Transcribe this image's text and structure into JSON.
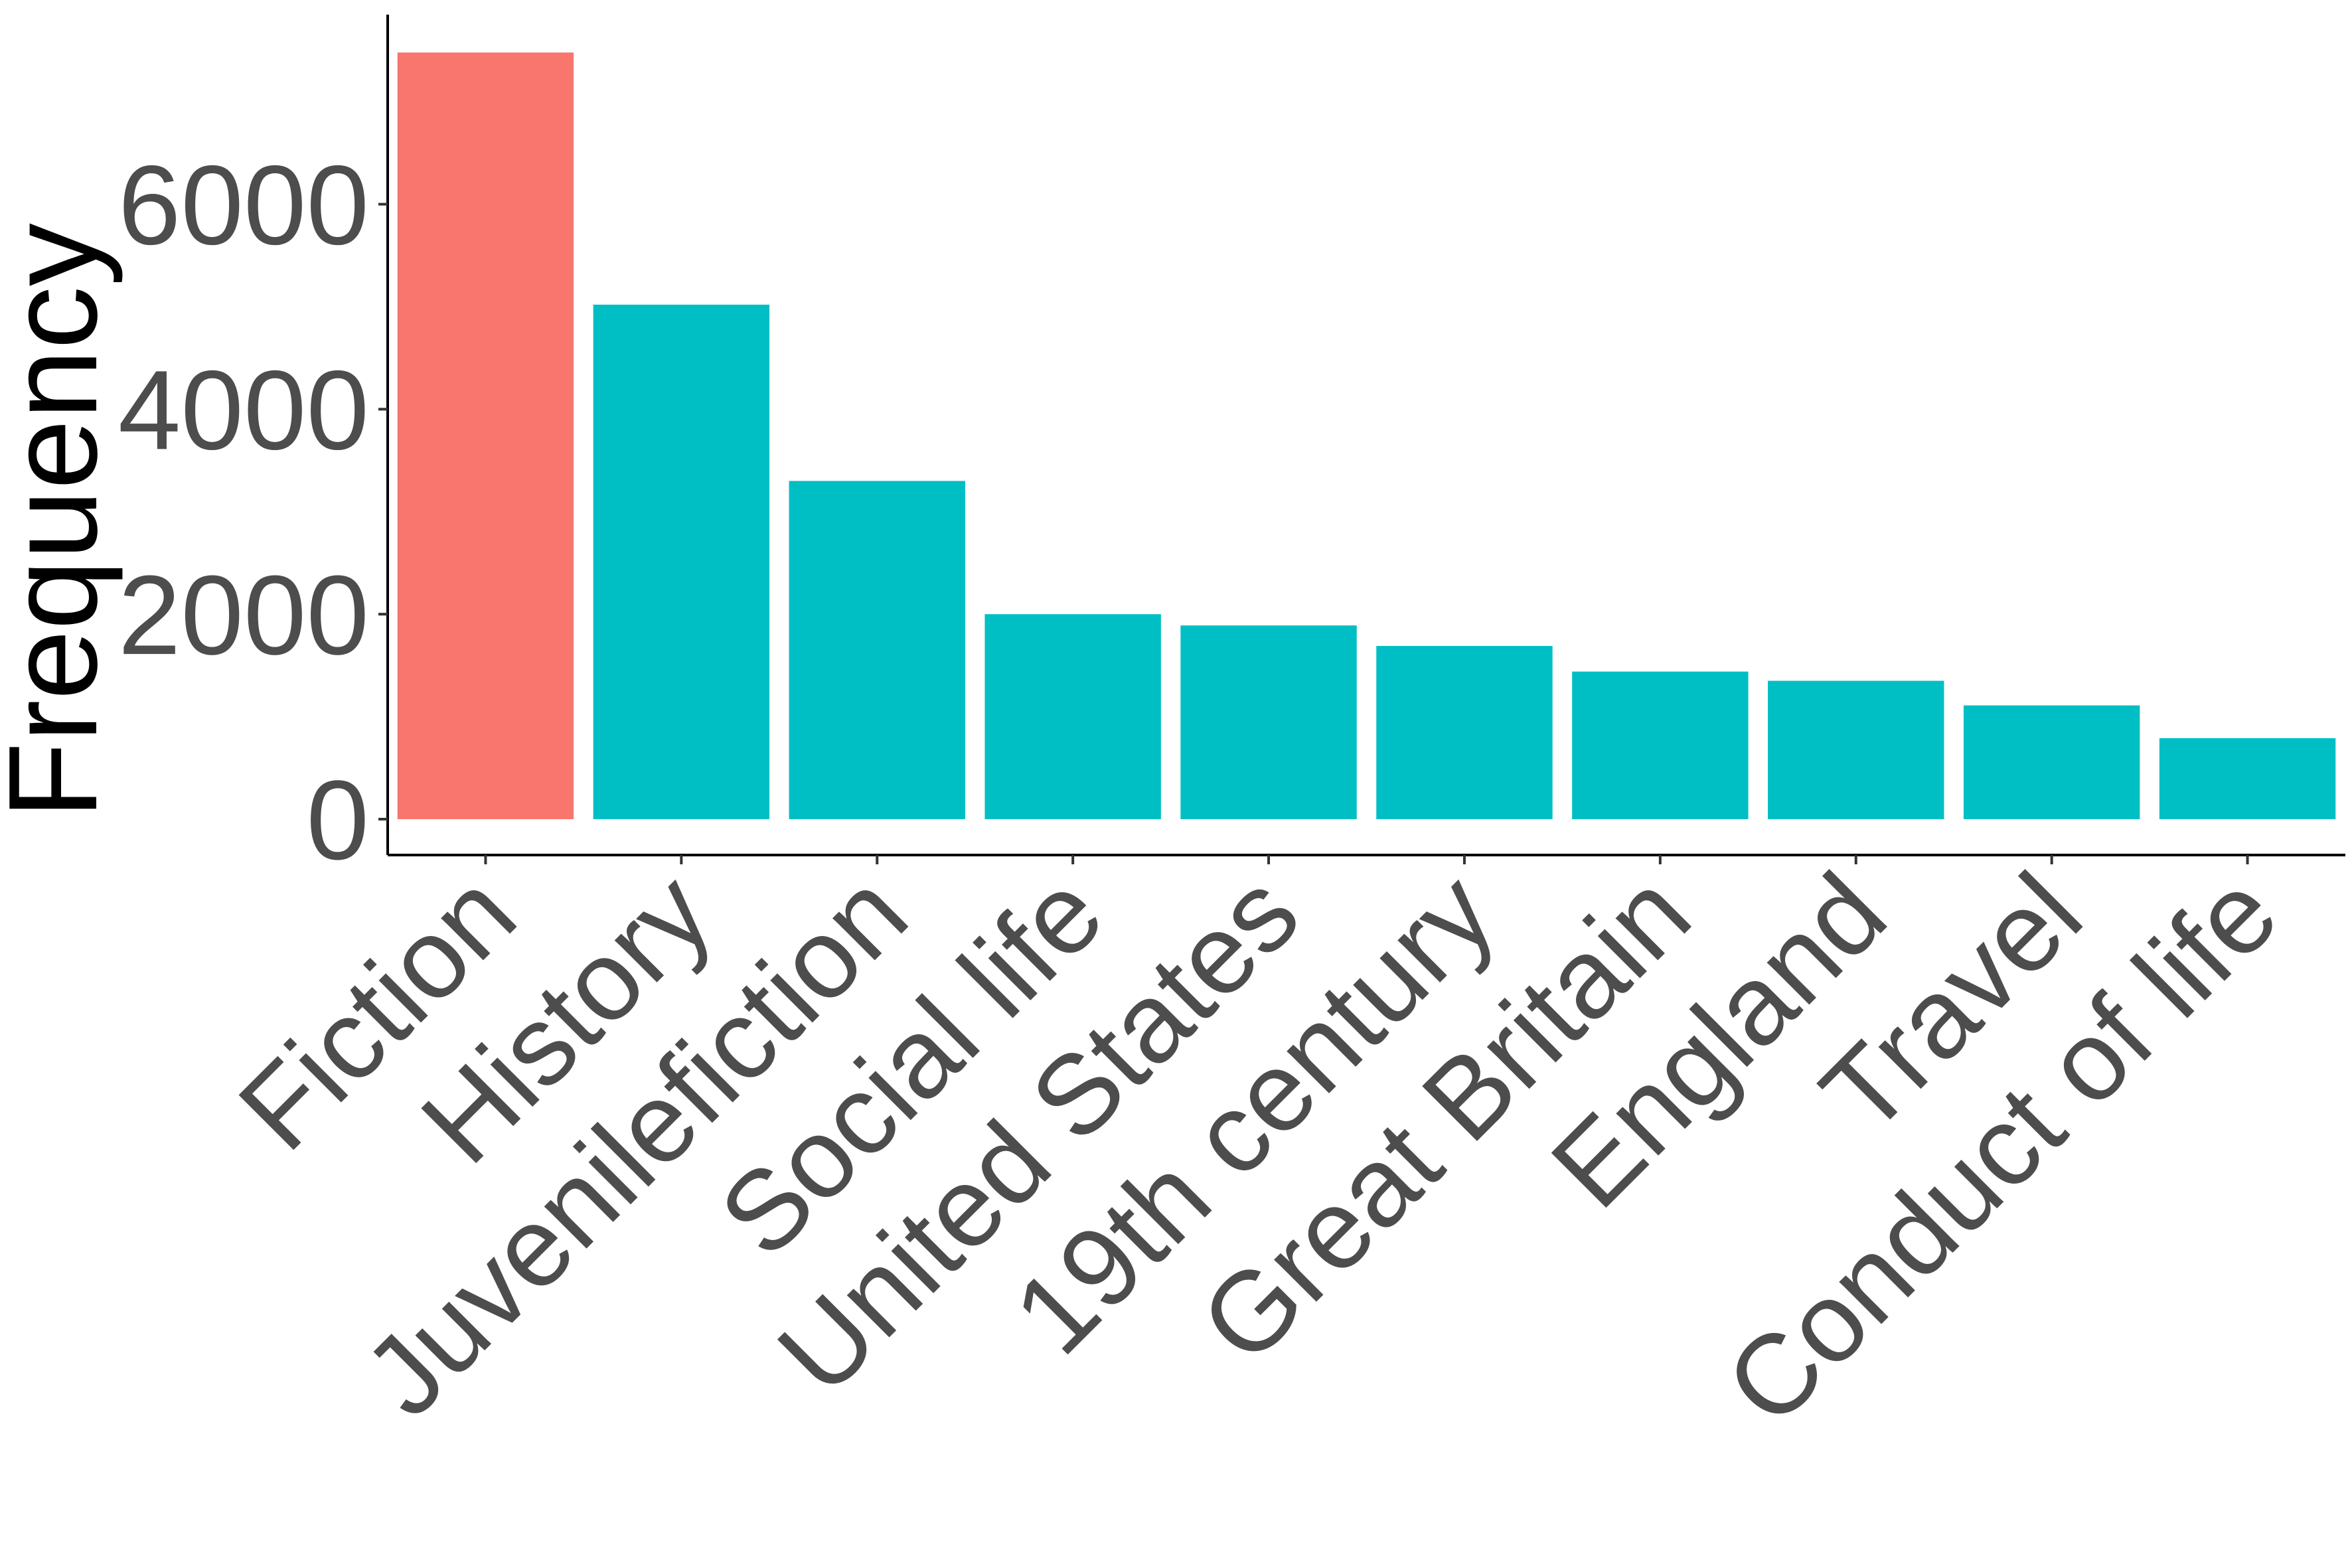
{
  "chart_data": {
    "type": "bar",
    "categories": [
      "Fiction",
      "History",
      "Juvenilefiction",
      "Social life",
      "United States",
      "19th century",
      "Great Britain",
      "England",
      "Travel",
      "Conduct of life"
    ],
    "values": [
      7480,
      5020,
      3300,
      2000,
      1890,
      1690,
      1440,
      1350,
      1110,
      790
    ],
    "bar_colors": [
      "#F8766D",
      "#00BFC4",
      "#00BFC4",
      "#00BFC4",
      "#00BFC4",
      "#00BFC4",
      "#00BFC4",
      "#00BFC4",
      "#00BFC4",
      "#00BFC4"
    ],
    "ylabel": "Frequency",
    "xlabel": "",
    "ylim": [
      -350,
      7850
    ],
    "yticks": [
      0,
      2000,
      4000,
      6000
    ],
    "ytick_labels": [
      "0",
      "2000",
      "4000",
      "6000"
    ],
    "grid": false,
    "legend": "none"
  }
}
